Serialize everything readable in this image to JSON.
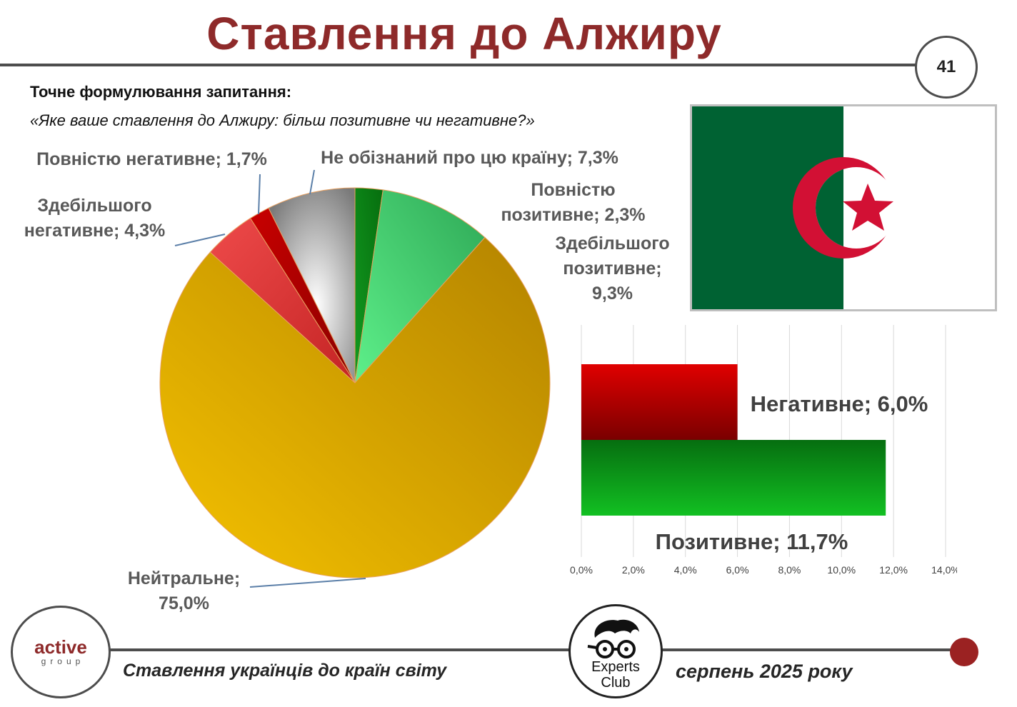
{
  "header": {
    "title": "Ставлення до Алжиру",
    "page_number": "41"
  },
  "question": {
    "heading": "Точне формулювання запитання:",
    "text": "«Яке ваше ставлення до Алжиру: більш позитивне чи негативне?»"
  },
  "pie_labels": {
    "fully_negative": "Повністю негативне; 1,7%",
    "not_aware": "Не обізнаний про цю країну; 7,3%",
    "mostly_negative": "Здебільшого негативне; 4,3%",
    "fully_positive": "Повністю позитивне; 2,3%",
    "mostly_positive": "Здебільшого позитивне; 9,3%",
    "neutral": "Нейтральне; 75,0%"
  },
  "bar_labels": {
    "negative": "Негативне; 6,0%",
    "positive": "Позитивне; 11,7%"
  },
  "chart_data": [
    {
      "type": "pie",
      "title": "",
      "slices": [
        {
          "name": "Повністю позитивне",
          "value": 2.3,
          "color": "#0a8a16"
        },
        {
          "name": "Здебільшого позитивне",
          "value": 9.3,
          "color": "#3fd06a"
        },
        {
          "name": "Нейтральне",
          "value": 75.0,
          "color": "#e0a800"
        },
        {
          "name": "Здебільшого негативне",
          "value": 4.3,
          "color": "#e0343a"
        },
        {
          "name": "Повністю негативне",
          "value": 1.7,
          "color": "#b00000"
        },
        {
          "name": "Не обізнаний про цю країну",
          "value": 7.3,
          "color": "#9a9a9a"
        }
      ]
    },
    {
      "type": "bar",
      "orientation": "horizontal",
      "categories": [
        "Негативне",
        "Позитивне"
      ],
      "values": [
        6.0,
        11.7
      ],
      "colors": [
        "#c00000",
        "#0aa81a"
      ],
      "xlim": [
        0,
        14
      ],
      "xticks": [
        "0,0%",
        "2,0%",
        "4,0%",
        "6,0%",
        "8,0%",
        "10,0%",
        "12,0%",
        "14,0%"
      ],
      "grid": true
    }
  ],
  "footer": {
    "logo_word": "active",
    "logo_sub": "group",
    "experts_line1": "Experts",
    "experts_line2": "Club",
    "left_text": "Ставлення українців до країн світу",
    "right_text": "серпень 2025 року"
  }
}
